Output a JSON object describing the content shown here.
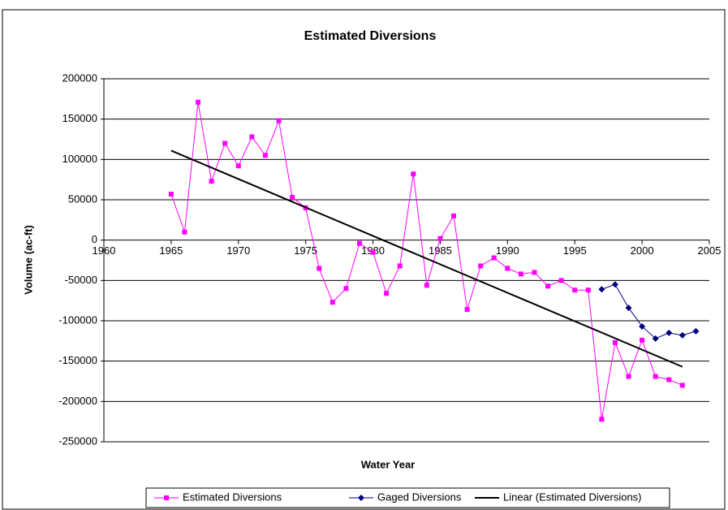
{
  "chart_data": {
    "type": "line",
    "title": "Estimated Diversions",
    "xlabel": "Water Year",
    "ylabel": "Volume (ac-ft)",
    "xlim": [
      1960,
      2005
    ],
    "xticks": [
      1960,
      1965,
      1970,
      1975,
      1980,
      1985,
      1990,
      1995,
      2000,
      2005
    ],
    "ylim": [
      -250000,
      200000
    ],
    "yticks": [
      -250000,
      -200000,
      -150000,
      -100000,
      -50000,
      0,
      50000,
      100000,
      150000,
      200000
    ],
    "grid": true,
    "legend": "bottom",
    "series": [
      {
        "name": "Estimated Diversions",
        "color": "#ff00ff",
        "marker": "square",
        "x": [
          1965,
          1966,
          1967,
          1968,
          1969,
          1970,
          1971,
          1972,
          1973,
          1974,
          1975,
          1976,
          1977,
          1978,
          1979,
          1980,
          1981,
          1982,
          1983,
          1984,
          1985,
          1986,
          1987,
          1988,
          1989,
          1990,
          1991,
          1992,
          1993,
          1994,
          1995,
          1996,
          1997,
          1998,
          1999,
          2000,
          2001,
          2002,
          2003
        ],
        "values": [
          57000,
          10000,
          171000,
          73000,
          120000,
          92000,
          128000,
          105000,
          148000,
          53000,
          40000,
          -35000,
          -77000,
          -60000,
          -4000,
          -15000,
          -66000,
          -32000,
          82000,
          -56000,
          2000,
          30000,
          -86000,
          -32000,
          -22000,
          -35000,
          -42000,
          -40000,
          -57000,
          -50000,
          -62000,
          -62000,
          -222000,
          -127000,
          -169000,
          -124000,
          -169000,
          -173000,
          -180000
        ]
      },
      {
        "name": "Gaged Diversions",
        "color": "#000080",
        "marker": "diamond",
        "x": [
          1997,
          1998,
          1999,
          2000,
          2001,
          2002,
          2003,
          2004
        ],
        "values": [
          -61000,
          -55000,
          -84000,
          -107000,
          -122000,
          -115000,
          -118000,
          -113000
        ]
      },
      {
        "name": "Linear (Estimated Diversions)",
        "color": "#000000",
        "marker": "none",
        "x": [
          1965,
          2003
        ],
        "values": [
          111000,
          -157000
        ]
      }
    ]
  }
}
